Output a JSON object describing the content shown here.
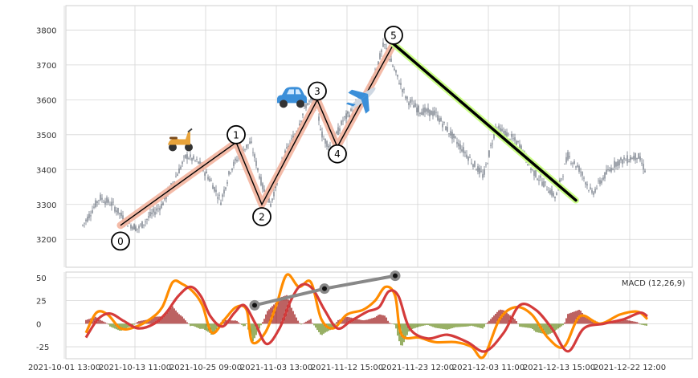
{
  "chart_data": [
    {
      "type": "candlestick",
      "panel": "price",
      "ylim": [
        3120,
        3870
      ],
      "yticks": [
        3200,
        3300,
        3400,
        3500,
        3600,
        3700,
        3800
      ],
      "grid": true,
      "series": [
        {
          "name": "price",
          "points": [
            {
              "t": 21.0,
              "v": 3240
            },
            {
              "t": 28.0,
              "v": 3265
            },
            {
              "t": 42.0,
              "v": 3320
            },
            {
              "t": 58.0,
              "v": 3300
            },
            {
              "t": 75.0,
              "v": 3250
            },
            {
              "t": 90.0,
              "v": 3230
            },
            {
              "t": 106.0,
              "v": 3270
            },
            {
              "t": 120.0,
              "v": 3300
            },
            {
              "t": 150.0,
              "v": 3440
            },
            {
              "t": 165.0,
              "v": 3420
            },
            {
              "t": 180.0,
              "v": 3370
            },
            {
              "t": 193.0,
              "v": 3310
            },
            {
              "t": 205.0,
              "v": 3400
            },
            {
              "t": 220.0,
              "v": 3455
            },
            {
              "t": 230.0,
              "v": 3478
            },
            {
              "t": 245.0,
              "v": 3350
            },
            {
              "t": 255.0,
              "v": 3300
            },
            {
              "t": 270.0,
              "v": 3430
            },
            {
              "t": 285.0,
              "v": 3500
            },
            {
              "t": 300.0,
              "v": 3590
            },
            {
              "t": 310.0,
              "v": 3600
            },
            {
              "t": 320.0,
              "v": 3490
            },
            {
              "t": 330.0,
              "v": 3465
            },
            {
              "t": 345.0,
              "v": 3540
            },
            {
              "t": 360.0,
              "v": 3580
            },
            {
              "t": 375.0,
              "v": 3620
            },
            {
              "t": 388.0,
              "v": 3700
            },
            {
              "t": 396.0,
              "v": 3760
            },
            {
              "t": 410.0,
              "v": 3680
            },
            {
              "t": 425.0,
              "v": 3600
            },
            {
              "t": 440.0,
              "v": 3570
            },
            {
              "t": 460.0,
              "v": 3560
            },
            {
              "t": 480.0,
              "v": 3500
            },
            {
              "t": 500.0,
              "v": 3440
            },
            {
              "t": 520.0,
              "v": 3380
            },
            {
              "t": 535.0,
              "v": 3520
            },
            {
              "t": 550.0,
              "v": 3500
            },
            {
              "t": 565.0,
              "v": 3470
            },
            {
              "t": 580.0,
              "v": 3400
            },
            {
              "t": 595.0,
              "v": 3360
            },
            {
              "t": 610.0,
              "v": 3320
            },
            {
              "t": 625.0,
              "v": 3440
            },
            {
              "t": 640.0,
              "v": 3400
            },
            {
              "t": 655.0,
              "v": 3330
            },
            {
              "t": 670.0,
              "v": 3380
            },
            {
              "t": 685.0,
              "v": 3420
            },
            {
              "t": 700.0,
              "v": 3430
            },
            {
              "t": 712.0,
              "v": 3440
            },
            {
              "t": 722.0,
              "v": 3395
            }
          ]
        }
      ],
      "zigzag": [
        {
          "label": "0",
          "t": 68.0,
          "v": 3240
        },
        {
          "label": "1",
          "t": 212.0,
          "v": 3478
        },
        {
          "label": "2",
          "t": 244.0,
          "v": 3300
        },
        {
          "label": "3",
          "t": 313.0,
          "v": 3600
        },
        {
          "label": "4",
          "t": 338.0,
          "v": 3465
        },
        {
          "label": "5",
          "t": 408.0,
          "v": 3760
        }
      ],
      "label_positions": [
        {
          "label": "0",
          "t": 68.0,
          "v": 3195
        },
        {
          "label": "1",
          "t": 212.0,
          "v": 3500
        },
        {
          "label": "2",
          "t": 244.0,
          "v": 3265
        },
        {
          "label": "3",
          "t": 313.0,
          "v": 3625
        },
        {
          "label": "4",
          "t": 338.0,
          "v": 3445
        },
        {
          "label": "5",
          "t": 408.0,
          "v": 3785
        }
      ],
      "trend_line": {
        "from": {
          "t": 408.0,
          "v": 3760
        },
        "to": {
          "t": 635.0,
          "v": 3312
        }
      },
      "icons": [
        {
          "name": "scooter-icon",
          "t": 143.0,
          "v": 3480
        },
        {
          "name": "car-icon",
          "t": 281.0,
          "v": 3600
        },
        {
          "name": "airplane-icon",
          "t": 370.0,
          "v": 3605
        }
      ]
    },
    {
      "type": "macd",
      "panel": "indicator",
      "legend": "MACD (12,26,9)",
      "ylim": [
        -38,
        56
      ],
      "yticks": [
        -25,
        0,
        25,
        50
      ],
      "xticks": [
        {
          "t": -2.0,
          "label": "2021-10-01 13:00"
        },
        {
          "t": 86.0,
          "label": "2021-10-13 11:00"
        },
        {
          "t": 174.0,
          "label": "2021-10-25 09:00"
        },
        {
          "t": 262.0,
          "label": "2021-11-03 13:00"
        },
        {
          "t": 350.0,
          "label": "2021-11-12 15:00"
        },
        {
          "t": 438.0,
          "label": "2021-11-23 12:00"
        },
        {
          "t": 526.0,
          "label": "2021-12-03 11:00"
        },
        {
          "t": 614.0,
          "label": "2021-12-13 15:00"
        },
        {
          "t": 702.0,
          "label": "2021-12-22 12:00"
        }
      ],
      "macd_line": [
        {
          "t": 25.0,
          "v": -10
        },
        {
          "t": 38.0,
          "v": 12
        },
        {
          "t": 52.0,
          "v": 10
        },
        {
          "t": 68.0,
          "v": -5
        },
        {
          "t": 85.0,
          "v": -4
        },
        {
          "t": 105.0,
          "v": 5
        },
        {
          "t": 120.0,
          "v": 18
        },
        {
          "t": 133.0,
          "v": 45
        },
        {
          "t": 145.0,
          "v": 43
        },
        {
          "t": 158.0,
          "v": 35
        },
        {
          "t": 170.0,
          "v": 20
        },
        {
          "t": 182.0,
          "v": -10
        },
        {
          "t": 198.0,
          "v": 5
        },
        {
          "t": 212.0,
          "v": 18
        },
        {
          "t": 225.0,
          "v": 15
        },
        {
          "t": 232.0,
          "v": -20
        },
        {
          "t": 248.0,
          "v": -10
        },
        {
          "t": 262.0,
          "v": 20
        },
        {
          "t": 275.0,
          "v": 53
        },
        {
          "t": 290.0,
          "v": 40
        },
        {
          "t": 305.0,
          "v": 45
        },
        {
          "t": 318.0,
          "v": 5
        },
        {
          "t": 333.0,
          "v": -5
        },
        {
          "t": 350.0,
          "v": 10
        },
        {
          "t": 370.0,
          "v": 15
        },
        {
          "t": 385.0,
          "v": 25
        },
        {
          "t": 398.0,
          "v": 40
        },
        {
          "t": 410.0,
          "v": 30
        },
        {
          "t": 418.0,
          "v": -12
        },
        {
          "t": 440.0,
          "v": -15
        },
        {
          "t": 460.0,
          "v": -20
        },
        {
          "t": 485.0,
          "v": -20
        },
        {
          "t": 505.0,
          "v": -25
        },
        {
          "t": 520.0,
          "v": -36
        },
        {
          "t": 540.0,
          "v": 5
        },
        {
          "t": 560.0,
          "v": 18
        },
        {
          "t": 580.0,
          "v": 10
        },
        {
          "t": 600.0,
          "v": -15
        },
        {
          "t": 620.0,
          "v": -25
        },
        {
          "t": 640.0,
          "v": 8
        },
        {
          "t": 665.0,
          "v": 0
        },
        {
          "t": 690.0,
          "v": 10
        },
        {
          "t": 712.0,
          "v": 13
        },
        {
          "t": 724.0,
          "v": 5
        }
      ],
      "signal_line": [
        {
          "t": 25.0,
          "v": -15
        },
        {
          "t": 40.0,
          "v": 5
        },
        {
          "t": 55.0,
          "v": 11
        },
        {
          "t": 72.0,
          "v": 3
        },
        {
          "t": 90.0,
          "v": -5
        },
        {
          "t": 110.0,
          "v": 0
        },
        {
          "t": 125.0,
          "v": 12
        },
        {
          "t": 140.0,
          "v": 30
        },
        {
          "t": 155.0,
          "v": 40
        },
        {
          "t": 168.0,
          "v": 30
        },
        {
          "t": 180.0,
          "v": 8
        },
        {
          "t": 195.0,
          "v": -3
        },
        {
          "t": 210.0,
          "v": 12
        },
        {
          "t": 222.0,
          "v": 20
        },
        {
          "t": 236.0,
          "v": 0
        },
        {
          "t": 250.0,
          "v": -22
        },
        {
          "t": 266.0,
          "v": -5
        },
        {
          "t": 280.0,
          "v": 25
        },
        {
          "t": 293.0,
          "v": 42
        },
        {
          "t": 307.0,
          "v": 38
        },
        {
          "t": 322.0,
          "v": 15
        },
        {
          "t": 338.0,
          "v": -5
        },
        {
          "t": 355.0,
          "v": 3
        },
        {
          "t": 375.0,
          "v": 13
        },
        {
          "t": 390.0,
          "v": 18
        },
        {
          "t": 402.0,
          "v": 35
        },
        {
          "t": 414.0,
          "v": 30
        },
        {
          "t": 428.0,
          "v": -5
        },
        {
          "t": 450.0,
          "v": -16
        },
        {
          "t": 475.0,
          "v": -12
        },
        {
          "t": 500.0,
          "v": -20
        },
        {
          "t": 522.0,
          "v": -30
        },
        {
          "t": 545.0,
          "v": -10
        },
        {
          "t": 565.0,
          "v": 20
        },
        {
          "t": 585.0,
          "v": 15
        },
        {
          "t": 605.0,
          "v": -5
        },
        {
          "t": 625.0,
          "v": -30
        },
        {
          "t": 645.0,
          "v": -5
        },
        {
          "t": 670.0,
          "v": 0
        },
        {
          "t": 695.0,
          "v": 5
        },
        {
          "t": 715.0,
          "v": 12
        },
        {
          "t": 724.0,
          "v": 8
        }
      ],
      "divergence": [
        {
          "t": 235.0,
          "v": 20
        },
        {
          "t": 322.0,
          "v": 38
        },
        {
          "t": 410.0,
          "v": 52
        }
      ]
    }
  ],
  "colors": {
    "candle": "#3f4a5a",
    "zigzag_glow": "#f3b49f",
    "zigzag_line": "#000000",
    "trend_glow": "#ccff88",
    "trend_line": "#000000",
    "macd_line": "#ff8c00",
    "signal_line": "#d43b3b",
    "hist_positive": "#a02020",
    "hist_negative": "#6b8e23",
    "divergence_line": "#888888",
    "grid": "#d5d5d5",
    "frame": "#cfcfcf"
  }
}
